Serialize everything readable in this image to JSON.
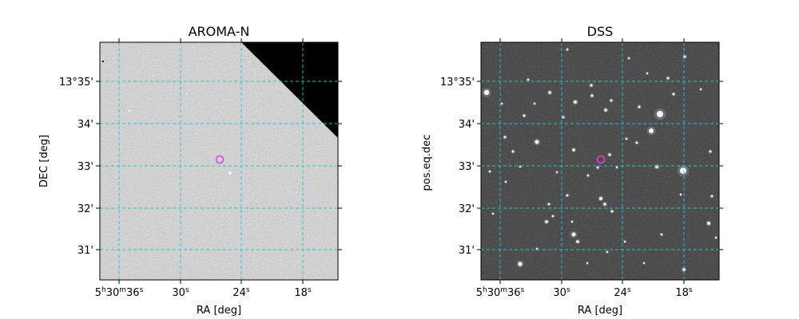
{
  "panels": [
    {
      "title": "AROMA-N",
      "xlabel": "RA [deg]",
      "ylabel": "DEC [deg]",
      "image": "grayscale sky survey cutout",
      "x_ticks": [
        "5h30m36s",
        "30s",
        "24s",
        "18s"
      ],
      "y_ticks": [
        "13°35'",
        "34'",
        "33'",
        "32'",
        "31'"
      ],
      "marker": {
        "shape": "circle",
        "color": "#e040e0"
      },
      "grid_color": "#20c8d0"
    },
    {
      "title": "DSS",
      "xlabel": "RA [deg]",
      "ylabel": "pos.eq.dec",
      "image": "grayscale sky survey cutout",
      "x_ticks": [
        "5h30m36s",
        "30s",
        "24s",
        "18s"
      ],
      "y_ticks": [
        "13°35'",
        "34'",
        "33'",
        "32'",
        "31'"
      ],
      "marker": {
        "shape": "circle",
        "color": "#e040e0"
      },
      "grid_color": "#20c8d0"
    }
  ]
}
